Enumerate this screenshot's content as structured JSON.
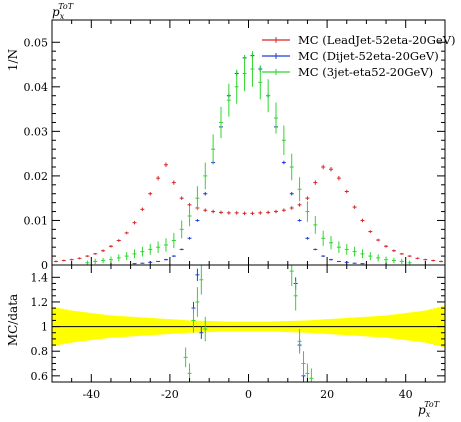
{
  "chart_data": {
    "type": "scatter",
    "title": "",
    "xlabel": "p_x^ToT",
    "ylabel": "1/N",
    "title_label": "p_x^ToT",
    "x_label_main": "p",
    "x_label_sub": "x",
    "x_label_sup": "ToT",
    "xlim": [
      -50,
      50
    ],
    "ylim": [
      0,
      0.055
    ],
    "x_ticks": [
      "-40",
      "-20",
      "0",
      "20",
      "40"
    ],
    "x_tick_values": [
      -40,
      -20,
      0,
      20,
      40
    ],
    "y_ticks": [
      "0",
      "0.01",
      "0.02",
      "0.03",
      "0.04",
      "0.05"
    ],
    "y_tick_values": [
      0,
      0.01,
      0.02,
      0.03,
      0.04,
      0.05
    ],
    "legend_placement": "top-right",
    "series": [
      {
        "name": "MC (LeadJet-52eta-20GeV)",
        "color": "#d62728",
        "x": [
          -49,
          -47,
          -45,
          -43,
          -41,
          -39,
          -37,
          -35,
          -33,
          -31,
          -29,
          -27,
          -25,
          -23,
          -21,
          -19,
          -17,
          -15,
          -13,
          -11,
          -9,
          -7,
          -5,
          -3,
          -1,
          1,
          3,
          5,
          7,
          9,
          11,
          13,
          15,
          17,
          19,
          21,
          23,
          25,
          27,
          29,
          31,
          33,
          35,
          37,
          39,
          41,
          43,
          45,
          47,
          49
        ],
        "y": [
          0.0008,
          0.001,
          0.0012,
          0.0015,
          0.002,
          0.0025,
          0.0032,
          0.0042,
          0.0055,
          0.0072,
          0.0095,
          0.0125,
          0.016,
          0.0195,
          0.0225,
          0.0185,
          0.015,
          0.0135,
          0.0128,
          0.0123,
          0.012,
          0.0118,
          0.0117,
          0.0117,
          0.0116,
          0.0116,
          0.0117,
          0.0118,
          0.012,
          0.0123,
          0.0128,
          0.0135,
          0.015,
          0.0185,
          0.022,
          0.0215,
          0.0195,
          0.0165,
          0.013,
          0.01,
          0.0075,
          0.0056,
          0.0042,
          0.0032,
          0.0025,
          0.002,
          0.0015,
          0.0012,
          0.001,
          0.0008
        ],
        "err": [
          0.0002,
          0.0002,
          0.0002,
          0.0002,
          0.0002,
          0.0002,
          0.0003,
          0.0003,
          0.0003,
          0.0003,
          0.0004,
          0.0004,
          0.0004,
          0.0005,
          0.0005,
          0.0005,
          0.0004,
          0.0004,
          0.0004,
          0.0004,
          0.0004,
          0.0004,
          0.0004,
          0.0004,
          0.0004,
          0.0004,
          0.0004,
          0.0004,
          0.0004,
          0.0004,
          0.0004,
          0.0004,
          0.0004,
          0.0005,
          0.0005,
          0.0005,
          0.0005,
          0.0004,
          0.0004,
          0.0004,
          0.0003,
          0.0003,
          0.0003,
          0.0003,
          0.0002,
          0.0002,
          0.0002,
          0.0002,
          0.0002,
          0.0002
        ]
      },
      {
        "name": "MC (Dijet-52eta-20GeV)",
        "color": "#1f3fd6",
        "x": [
          -29,
          -27,
          -25,
          -23,
          -21,
          -19,
          -17,
          -15,
          -13,
          -11,
          -9,
          -7,
          -5,
          -3,
          -1,
          1,
          3,
          5,
          7,
          9,
          11,
          13,
          15,
          17,
          19,
          21,
          23,
          25,
          27,
          29
        ],
        "y": [
          0.0003,
          0.0004,
          0.0006,
          0.0008,
          0.0012,
          0.002,
          0.0035,
          0.006,
          0.01,
          0.016,
          0.023,
          0.031,
          0.038,
          0.043,
          0.0465,
          0.047,
          0.044,
          0.038,
          0.031,
          0.023,
          0.016,
          0.01,
          0.006,
          0.0035,
          0.002,
          0.0012,
          0.0008,
          0.0006,
          0.0004,
          0.0003
        ],
        "err": [
          0.0001,
          0.0001,
          0.0001,
          0.0001,
          0.0002,
          0.0002,
          0.0002,
          0.0003,
          0.0003,
          0.0004,
          0.0004,
          0.0005,
          0.0005,
          0.0006,
          0.0006,
          0.0006,
          0.0006,
          0.0005,
          0.0005,
          0.0004,
          0.0004,
          0.0003,
          0.0003,
          0.0002,
          0.0002,
          0.0002,
          0.0001,
          0.0001,
          0.0001,
          0.0001
        ]
      },
      {
        "name": "MC (3jet-eta52-20GeV)",
        "color": "#2fd62f",
        "x": [
          -41,
          -39,
          -37,
          -35,
          -33,
          -31,
          -29,
          -27,
          -25,
          -23,
          -21,
          -19,
          -17,
          -15,
          -13,
          -11,
          -9,
          -7,
          -5,
          -3,
          -1,
          1,
          3,
          5,
          7,
          9,
          11,
          13,
          15,
          17,
          19,
          21,
          23,
          25,
          27,
          29,
          31,
          33,
          35,
          37,
          39,
          41
        ],
        "y": [
          0.0005,
          0.0008,
          0.001,
          0.0012,
          0.0016,
          0.002,
          0.0025,
          0.003,
          0.0035,
          0.004,
          0.0045,
          0.0055,
          0.008,
          0.011,
          0.015,
          0.02,
          0.026,
          0.032,
          0.037,
          0.04,
          0.043,
          0.044,
          0.041,
          0.038,
          0.033,
          0.028,
          0.022,
          0.017,
          0.012,
          0.009,
          0.006,
          0.005,
          0.004,
          0.0035,
          0.003,
          0.0025,
          0.002,
          0.0016,
          0.0012,
          0.001,
          0.0008,
          0.0005
        ],
        "err": [
          0.0005,
          0.0006,
          0.0006,
          0.0007,
          0.0008,
          0.0009,
          0.001,
          0.0011,
          0.0012,
          0.0013,
          0.0015,
          0.0017,
          0.002,
          0.0023,
          0.0027,
          0.003,
          0.0033,
          0.0035,
          0.0037,
          0.0038,
          0.004,
          0.004,
          0.0038,
          0.0037,
          0.0035,
          0.0033,
          0.003,
          0.0027,
          0.0023,
          0.002,
          0.0017,
          0.0015,
          0.0013,
          0.0012,
          0.0011,
          0.001,
          0.0009,
          0.0008,
          0.0007,
          0.0006,
          0.0006,
          0.0005
        ]
      }
    ],
    "ratio_panel": {
      "ylabel": "MC/data",
      "ylim": [
        0.55,
        1.5
      ],
      "y_ticks": [
        "0.6",
        "0.8",
        "1",
        "1.2",
        "1.4"
      ],
      "y_tick_values": [
        0.6,
        0.8,
        1.0,
        1.2,
        1.4
      ],
      "band_color": "#ffff00",
      "band_x": [
        -50,
        -45,
        -40,
        -35,
        -30,
        -25,
        -20,
        -15,
        -10,
        -5,
        0,
        5,
        10,
        15,
        20,
        25,
        30,
        35,
        40,
        45,
        50
      ],
      "band_half_width": [
        0.16,
        0.13,
        0.11,
        0.09,
        0.08,
        0.07,
        0.06,
        0.05,
        0.045,
        0.04,
        0.04,
        0.04,
        0.045,
        0.05,
        0.06,
        0.07,
        0.08,
        0.09,
        0.11,
        0.13,
        0.17
      ],
      "series": [
        {
          "name": "MC (Dijet-52eta-20GeV)",
          "color": "#1f3fd6",
          "x": [
            -14,
            -13,
            -12,
            12,
            13,
            14
          ],
          "y": [
            1.15,
            1.42,
            0.95,
            1.35,
            0.85,
            0.6
          ],
          "err": [
            0.05,
            0.05,
            0.05,
            0.05,
            0.05,
            0.05
          ]
        },
        {
          "name": "MC (3jet-eta52-20GeV)",
          "color": "#2fd62f",
          "x": [
            -16,
            -15,
            -14,
            -13,
            -12,
            -11,
            11,
            12,
            13,
            14,
            15,
            16
          ],
          "y": [
            0.75,
            0.62,
            1.05,
            1.2,
            1.38,
            0.98,
            1.45,
            1.25,
            0.88,
            0.7,
            0.62,
            0.58
          ],
          "err": [
            0.08,
            0.08,
            0.1,
            0.12,
            0.12,
            0.1,
            0.12,
            0.12,
            0.1,
            0.1,
            0.08,
            0.08
          ]
        }
      ]
    }
  }
}
